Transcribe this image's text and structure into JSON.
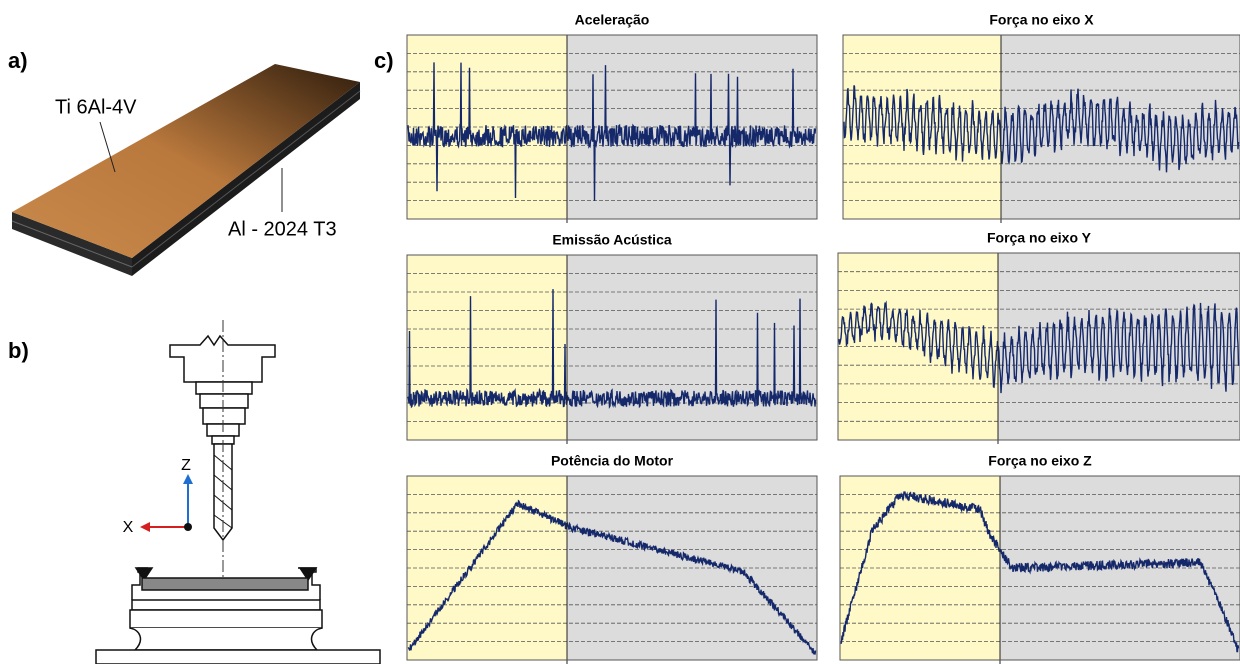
{
  "panel_labels": {
    "a": "a)",
    "b": "b)",
    "c": "c)"
  },
  "materials": {
    "top": "Ti 6Al-4V",
    "bottom": "Al - 2024 T3"
  },
  "axis_labels": {
    "z": "Z",
    "x": "X"
  },
  "plots": [
    {
      "title": "Aceleração"
    },
    {
      "title": "Força no eixo X"
    },
    {
      "title": "Emissão Acústica"
    },
    {
      "title": "Força no eixo Y"
    },
    {
      "title": "Potência do Motor"
    },
    {
      "title": "Força no eixo Z"
    }
  ]
}
